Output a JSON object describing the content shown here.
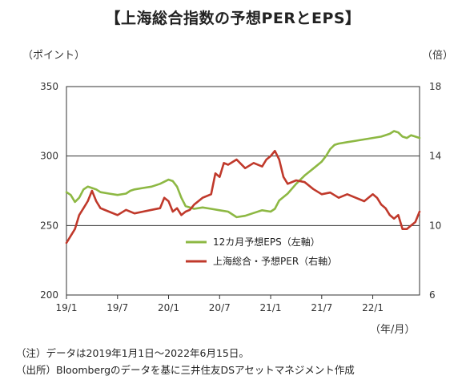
{
  "title": "【上海総合指数の予想PERとEPS】",
  "units": {
    "left": "（ポイント）",
    "right": "（倍）",
    "x": "（年/月）"
  },
  "notes": {
    "note": "（注）データは2019年1月1日～2022年6月15日。",
    "source": "（出所）Bloombergのデータを基に三井住友DSアセットマネジメント作成"
  },
  "colors": {
    "eps": "#8DB843",
    "per": "#C0392B",
    "grid": "#333333"
  },
  "chart_data": {
    "type": "line",
    "x_ticks": [
      {
        "label": "19/1",
        "t": 0
      },
      {
        "label": "19/7",
        "t": 6
      },
      {
        "label": "20/1",
        "t": 12
      },
      {
        "label": "20/7",
        "t": 18
      },
      {
        "label": "21/1",
        "t": 24
      },
      {
        "label": "21/7",
        "t": 30
      },
      {
        "label": "22/1",
        "t": 36
      }
    ],
    "x_range_months": [
      0,
      41.5
    ],
    "y_left": {
      "ticks": [
        "200",
        "250",
        "300",
        "350"
      ],
      "range": [
        200,
        350
      ]
    },
    "y_right": {
      "ticks": [
        "6",
        "10",
        "14",
        "18"
      ],
      "range": [
        6,
        18
      ]
    },
    "legend": {
      "position": "lower-center"
    },
    "series": [
      {
        "name": "12カ月予想EPS（左軸）",
        "axis": "left",
        "color": "#8DB843",
        "points": [
          [
            0,
            274
          ],
          [
            0.5,
            272
          ],
          [
            1,
            267
          ],
          [
            1.5,
            270
          ],
          [
            2,
            276
          ],
          [
            2.5,
            278
          ],
          [
            3,
            277
          ],
          [
            3.5,
            276
          ],
          [
            4,
            274
          ],
          [
            5,
            273
          ],
          [
            6,
            272
          ],
          [
            7,
            273
          ],
          [
            7.5,
            275
          ],
          [
            8,
            276
          ],
          [
            9,
            277
          ],
          [
            10,
            278
          ],
          [
            11,
            280
          ],
          [
            12,
            283
          ],
          [
            12.5,
            282
          ],
          [
            13,
            278
          ],
          [
            13.5,
            270
          ],
          [
            14,
            264
          ],
          [
            15,
            262
          ],
          [
            16,
            263
          ],
          [
            17,
            262
          ],
          [
            18,
            261
          ],
          [
            19,
            260
          ],
          [
            20,
            256
          ],
          [
            21,
            257
          ],
          [
            22,
            259
          ],
          [
            23,
            261
          ],
          [
            24,
            260
          ],
          [
            24.5,
            262
          ],
          [
            25,
            268
          ],
          [
            26,
            273
          ],
          [
            27,
            280
          ],
          [
            28,
            286
          ],
          [
            29,
            291
          ],
          [
            30,
            296
          ],
          [
            30.5,
            300
          ],
          [
            31,
            305
          ],
          [
            31.5,
            308
          ],
          [
            32,
            309
          ],
          [
            33,
            310
          ],
          [
            34,
            311
          ],
          [
            35,
            312
          ],
          [
            36,
            313
          ],
          [
            37,
            314
          ],
          [
            38,
            316
          ],
          [
            38.5,
            318
          ],
          [
            39,
            317
          ],
          [
            39.5,
            314
          ],
          [
            40,
            313
          ],
          [
            40.5,
            315
          ],
          [
            41,
            314
          ],
          [
            41.5,
            313
          ]
        ]
      },
      {
        "name": "上海総合・予想PER（右軸）",
        "axis": "right",
        "color": "#C0392B",
        "points": [
          [
            0,
            9.0
          ],
          [
            0.5,
            9.4
          ],
          [
            1,
            9.8
          ],
          [
            1.5,
            10.6
          ],
          [
            2,
            11.0
          ],
          [
            2.5,
            11.4
          ],
          [
            3,
            12.0
          ],
          [
            3.5,
            11.4
          ],
          [
            4,
            11.0
          ],
          [
            5,
            10.8
          ],
          [
            6,
            10.6
          ],
          [
            7,
            10.9
          ],
          [
            8,
            10.7
          ],
          [
            9,
            10.8
          ],
          [
            10,
            10.9
          ],
          [
            11,
            11.0
          ],
          [
            11.5,
            11.6
          ],
          [
            12,
            11.4
          ],
          [
            12.5,
            10.8
          ],
          [
            13,
            11.0
          ],
          [
            13.5,
            10.6
          ],
          [
            14,
            10.8
          ],
          [
            14.5,
            10.9
          ],
          [
            15,
            11.2
          ],
          [
            16,
            11.6
          ],
          [
            17,
            11.8
          ],
          [
            17.5,
            13.0
          ],
          [
            18,
            12.8
          ],
          [
            18.5,
            13.6
          ],
          [
            19,
            13.5
          ],
          [
            20,
            13.8
          ],
          [
            21,
            13.3
          ],
          [
            22,
            13.6
          ],
          [
            23,
            13.4
          ],
          [
            23.5,
            13.8
          ],
          [
            24,
            14.0
          ],
          [
            24.5,
            14.3
          ],
          [
            25,
            13.8
          ],
          [
            25.5,
            12.8
          ],
          [
            26,
            12.4
          ],
          [
            27,
            12.6
          ],
          [
            28,
            12.5
          ],
          [
            29,
            12.1
          ],
          [
            30,
            11.8
          ],
          [
            31,
            11.9
          ],
          [
            32,
            11.6
          ],
          [
            33,
            11.8
          ],
          [
            34,
            11.6
          ],
          [
            35,
            11.4
          ],
          [
            36,
            11.8
          ],
          [
            36.5,
            11.6
          ],
          [
            37,
            11.2
          ],
          [
            37.5,
            11.0
          ],
          [
            38,
            10.6
          ],
          [
            38.5,
            10.4
          ],
          [
            39,
            10.6
          ],
          [
            39.5,
            9.8
          ],
          [
            40,
            9.8
          ],
          [
            40.5,
            10.0
          ],
          [
            41,
            10.2
          ],
          [
            41.5,
            10.8
          ]
        ]
      }
    ]
  }
}
